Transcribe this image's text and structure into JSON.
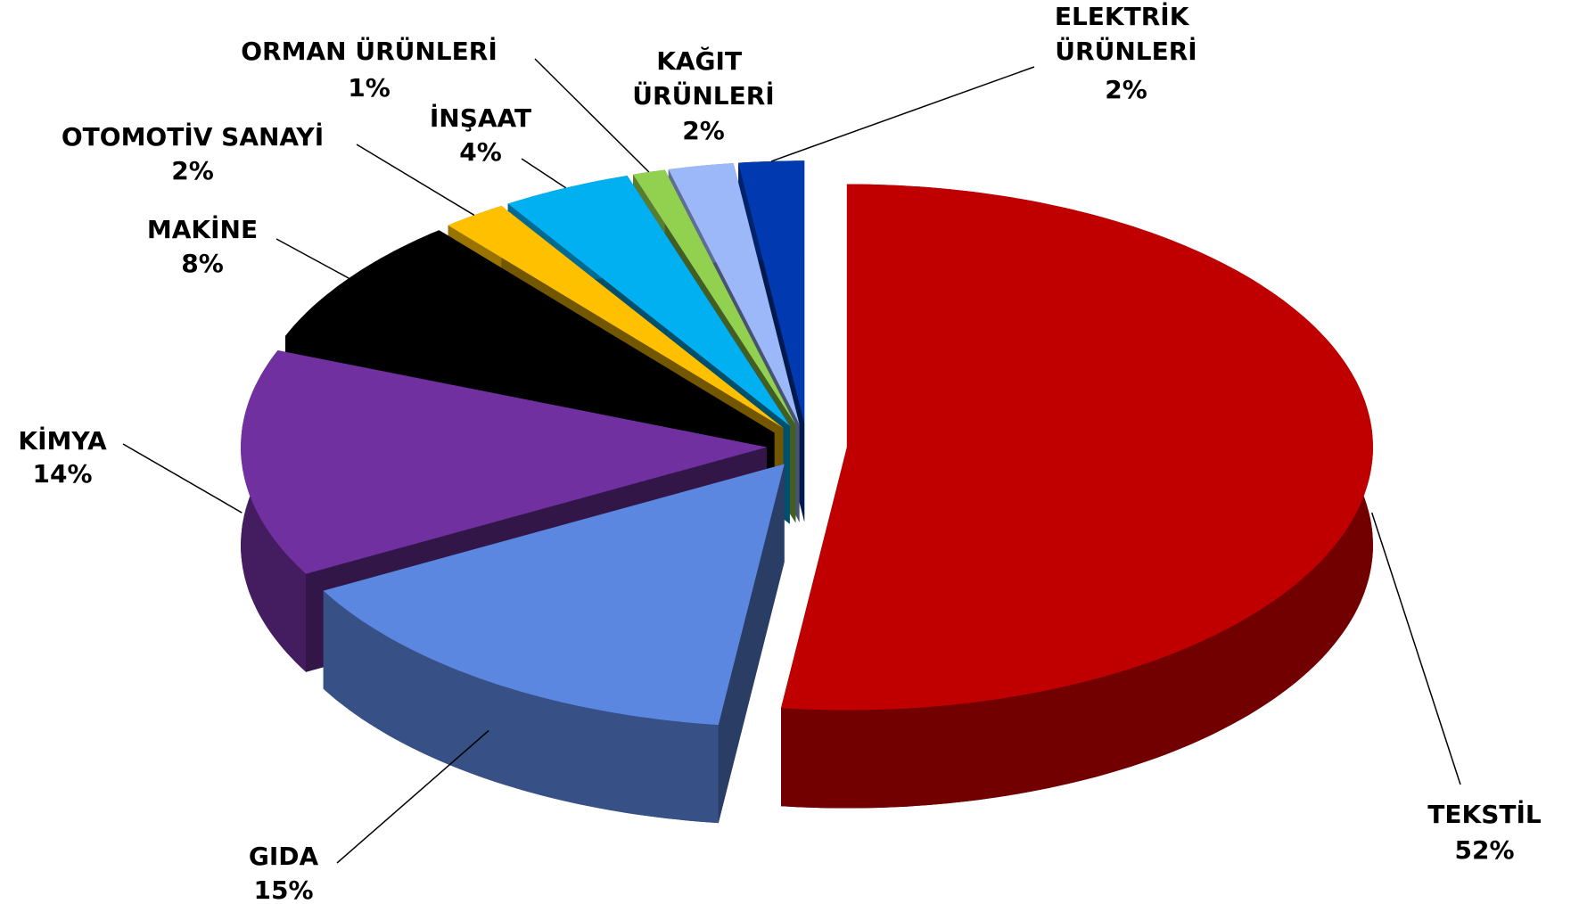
{
  "chart_data": {
    "type": "pie3d",
    "categories": [
      "TEKSTİL",
      "GIDA",
      "KİMYA",
      "MAKİNE",
      "OTOMOTİV SANAYİ",
      "İNŞAAT",
      "ORMAN ÜRÜNLERİ",
      "KAĞIT ÜRÜNLERİ",
      "ELEKTRİK ÜRÜNLERİ"
    ],
    "values": [
      52,
      15,
      14,
      8,
      2,
      4,
      1,
      2,
      2
    ],
    "value_labels": [
      "52%",
      "15%",
      "14%",
      "8%",
      "2%",
      "4%",
      "1%",
      "2%",
      "2%"
    ],
    "colors": [
      "#c00000",
      "#5b87e0",
      "#7030a0",
      "#000000",
      "#ffc000",
      "#00b0f0",
      "#92d050",
      "#9db8f8",
      "#0039b0"
    ]
  }
}
